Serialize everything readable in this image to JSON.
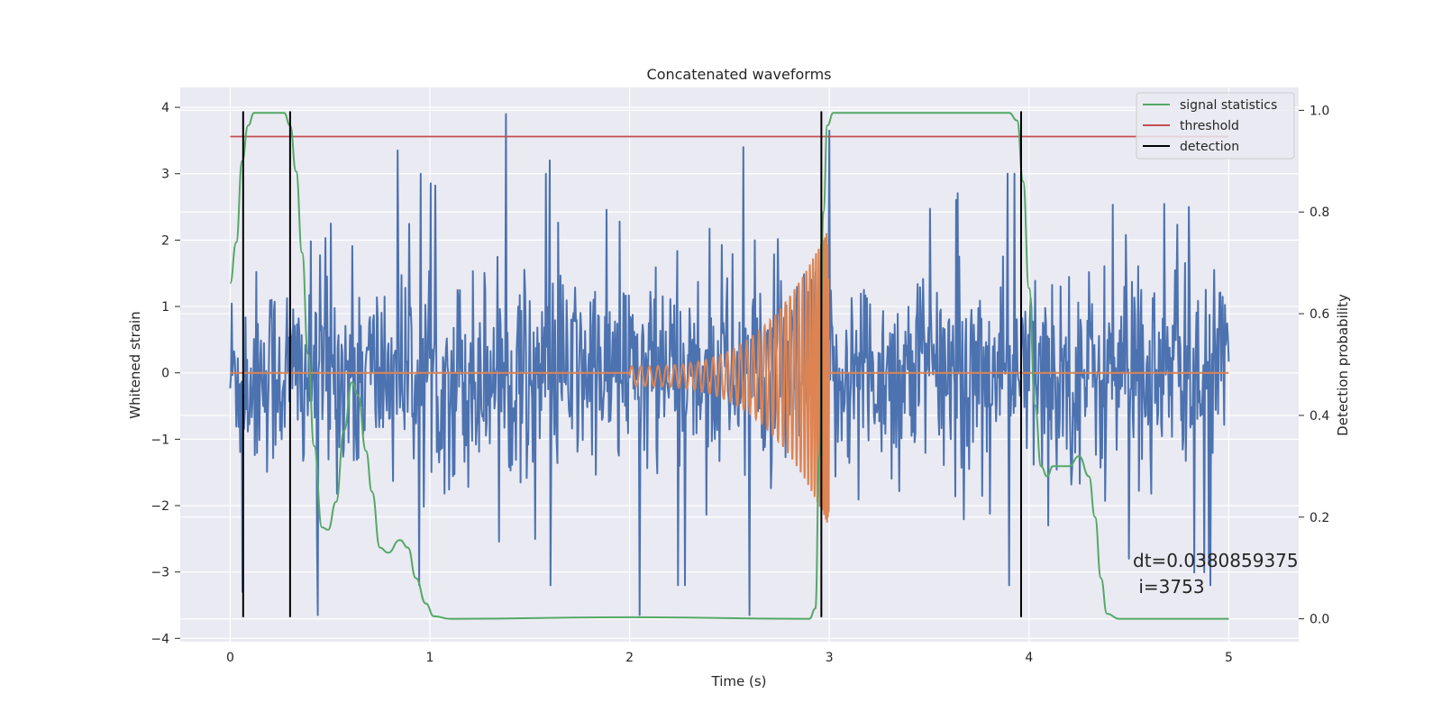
{
  "chart_data": {
    "type": "line",
    "title": "Concatenated waveforms",
    "xlabel": "Time (s)",
    "ylabel_left": "Whitened strain",
    "ylabel_right": "Detection probability",
    "xlim": [
      -0.25,
      5.35
    ],
    "ylim_left": [
      -4.05,
      4.3
    ],
    "ylim_right": [
      -0.045,
      1.045
    ],
    "x_ticks": [
      0,
      1,
      2,
      3,
      4,
      5
    ],
    "x_tick_labels": [
      "0",
      "1",
      "2",
      "3",
      "4",
      "5"
    ],
    "y_left_ticks": [
      4,
      3,
      2,
      1,
      0,
      -1,
      -2,
      -3,
      -4
    ],
    "y_left_tick_labels": [
      "4",
      "3",
      "2",
      "1",
      "0",
      "−1",
      "−2",
      "−3",
      "−4"
    ],
    "y_right_ticks": [
      1.0,
      0.8,
      0.6,
      0.4,
      0.2,
      0.0
    ],
    "y_right_tick_labels": [
      "1.0",
      "0.8",
      "0.6",
      "0.4",
      "0.2",
      "0.0"
    ],
    "grid": true,
    "legend_position": "top-right",
    "series": [
      {
        "name": "whitened strain",
        "axis": "left",
        "color": "#4c72b0",
        "kind": "noise",
        "x_range": [
          0,
          5
        ],
        "n_points": 1300,
        "core_std": 0.75,
        "spikes": [
          {
            "x": 1.38,
            "y": 3.9
          },
          {
            "x": 0.44,
            "y": -3.65
          },
          {
            "x": 2.05,
            "y": -3.65
          },
          {
            "x": 2.6,
            "y": -3.65
          },
          {
            "x": 0.06,
            "y": -3.3
          },
          {
            "x": 4.8,
            "y": 2.5
          },
          {
            "x": 4.9,
            "y": -2.85
          },
          {
            "x": 3.0,
            "y": 3.65
          },
          {
            "x": 2.57,
            "y": 3.4
          },
          {
            "x": 1.6,
            "y": 3.2
          },
          {
            "x": 0.84,
            "y": 3.35
          },
          {
            "x": 4.5,
            "y": -2.8
          }
        ]
      },
      {
        "name": "injected signal",
        "axis": "left",
        "color": "#dd8452",
        "kind": "chirp",
        "x_range": [
          0,
          5
        ],
        "start": 2.0,
        "merger": 2.995,
        "amp_start": 0.15,
        "amp_peak": 2.25
      },
      {
        "name": "signal statistics",
        "axis": "right",
        "color": "#55a868",
        "points": [
          [
            0.0,
            0.66
          ],
          [
            0.03,
            0.74
          ],
          [
            0.06,
            0.9
          ],
          [
            0.09,
            0.97
          ],
          [
            0.12,
            0.995
          ],
          [
            0.27,
            0.995
          ],
          [
            0.3,
            0.97
          ],
          [
            0.33,
            0.88
          ],
          [
            0.36,
            0.72
          ],
          [
            0.39,
            0.52
          ],
          [
            0.42,
            0.34
          ],
          [
            0.46,
            0.18
          ],
          [
            0.49,
            0.175
          ],
          [
            0.53,
            0.23
          ],
          [
            0.57,
            0.37
          ],
          [
            0.61,
            0.465
          ],
          [
            0.64,
            0.44
          ],
          [
            0.68,
            0.33
          ],
          [
            0.71,
            0.25
          ],
          [
            0.75,
            0.14
          ],
          [
            0.79,
            0.13
          ],
          [
            0.85,
            0.155
          ],
          [
            0.89,
            0.14
          ],
          [
            0.93,
            0.08
          ],
          [
            0.98,
            0.03
          ],
          [
            1.02,
            0.005
          ],
          [
            1.1,
            0.0
          ],
          [
            2.0,
            0.003
          ],
          [
            2.9,
            0.0
          ],
          [
            2.93,
            0.02
          ],
          [
            2.95,
            0.32
          ],
          [
            2.97,
            0.8
          ],
          [
            2.99,
            0.97
          ],
          [
            3.02,
            0.995
          ],
          [
            3.9,
            0.995
          ],
          [
            3.94,
            0.98
          ],
          [
            3.97,
            0.86
          ],
          [
            4.0,
            0.65
          ],
          [
            4.03,
            0.42
          ],
          [
            4.06,
            0.3
          ],
          [
            4.09,
            0.28
          ],
          [
            4.12,
            0.3
          ],
          [
            4.15,
            0.3
          ],
          [
            4.2,
            0.3
          ],
          [
            4.25,
            0.32
          ],
          [
            4.3,
            0.28
          ],
          [
            4.33,
            0.2
          ],
          [
            4.36,
            0.08
          ],
          [
            4.39,
            0.01
          ],
          [
            4.45,
            0.0
          ],
          [
            5.0,
            0.0
          ]
        ]
      },
      {
        "name": "threshold",
        "axis": "left",
        "color": "#c44e52",
        "x": [
          0,
          5
        ],
        "y": [
          3.56,
          3.56
        ]
      },
      {
        "name": "detection",
        "axis": "left",
        "color": "#000000",
        "kind": "vlines",
        "x": [
          0.065,
          0.3,
          2.96,
          3.96
        ],
        "y_range": [
          -3.68,
          3.94
        ]
      }
    ],
    "legend": [
      {
        "label": "signal statistics",
        "color": "#55a868"
      },
      {
        "label": "threshold",
        "color": "#c44e52"
      },
      {
        "label": "detection",
        "color": "#000000"
      }
    ],
    "annotation": {
      "line1": "dt=0.0380859375",
      "line2": " i=3753"
    }
  }
}
